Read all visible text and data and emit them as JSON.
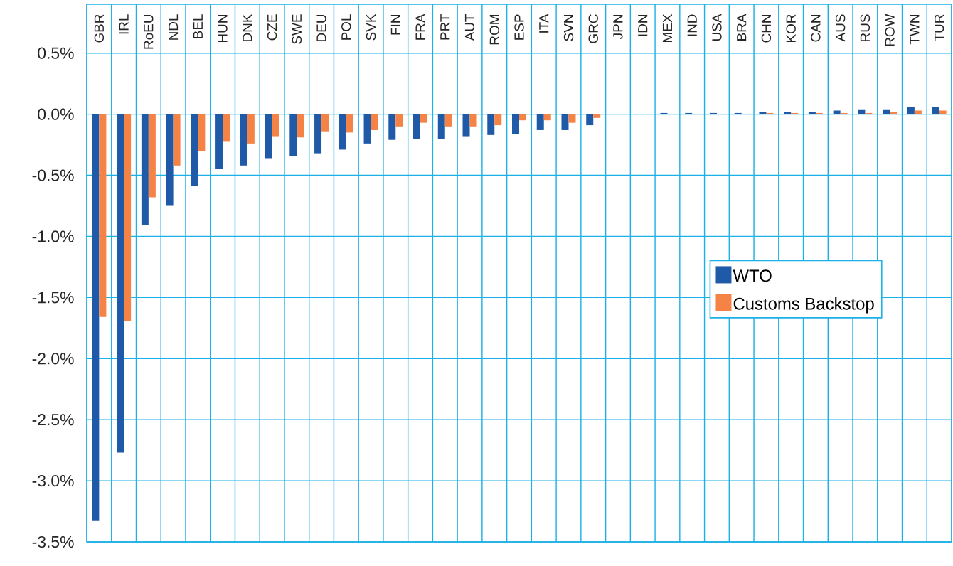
{
  "chart_data": {
    "type": "bar",
    "categories": [
      "GBR",
      "IRL",
      "RoEU",
      "NDL",
      "BEL",
      "HUN",
      "DNK",
      "CZE",
      "SWE",
      "DEU",
      "POL",
      "SVK",
      "FIN",
      "FRA",
      "PRT",
      "AUT",
      "ROM",
      "ESP",
      "ITA",
      "SVN",
      "GRC",
      "JPN",
      "IDN",
      "MEX",
      "IND",
      "USA",
      "BRA",
      "CHN",
      "KOR",
      "CAN",
      "AUS",
      "RUS",
      "ROW",
      "TWN",
      "TUR"
    ],
    "series": [
      {
        "name": "WTO",
        "color": "#1f5aa8",
        "values": [
          -3.33,
          -2.77,
          -0.91,
          -0.75,
          -0.59,
          -0.45,
          -0.42,
          -0.36,
          -0.34,
          -0.32,
          -0.29,
          -0.24,
          -0.21,
          -0.2,
          -0.2,
          -0.18,
          -0.17,
          -0.16,
          -0.13,
          -0.13,
          -0.09,
          0,
          0,
          0.01,
          0.01,
          0.01,
          0.01,
          0.02,
          0.02,
          0.02,
          0.03,
          0.04,
          0.04,
          0.06,
          0.06
        ]
      },
      {
        "name": "Customs Backstop",
        "color": "#f58346",
        "values": [
          -1.66,
          -1.69,
          -0.68,
          -0.42,
          -0.3,
          -0.22,
          -0.24,
          -0.18,
          -0.19,
          -0.14,
          -0.15,
          -0.13,
          -0.1,
          -0.07,
          -0.1,
          -0.1,
          -0.09,
          -0.05,
          -0.05,
          -0.07,
          -0.03,
          0,
          0,
          0,
          0,
          0,
          0,
          0.01,
          0.01,
          0.01,
          0.01,
          0.01,
          0.02,
          0.03,
          0.03
        ]
      }
    ],
    "ylim": [
      -3.5,
      0.9
    ],
    "yticks": [
      {
        "value": 0.5,
        "label": "0.5%"
      },
      {
        "value": 0,
        "label": "0.0%"
      },
      {
        "value": -0.5,
        "label": "-0.5%"
      },
      {
        "value": -1,
        "label": "-1.0%"
      },
      {
        "value": -1.5,
        "label": "-1.5%"
      },
      {
        "value": -2,
        "label": "-2.0%"
      },
      {
        "value": -2.5,
        "label": "-2.5%"
      },
      {
        "value": -3,
        "label": "-3.0%"
      },
      {
        "value": -3.5,
        "label": "-3.5%"
      }
    ],
    "grid": true,
    "legend": "center right"
  }
}
